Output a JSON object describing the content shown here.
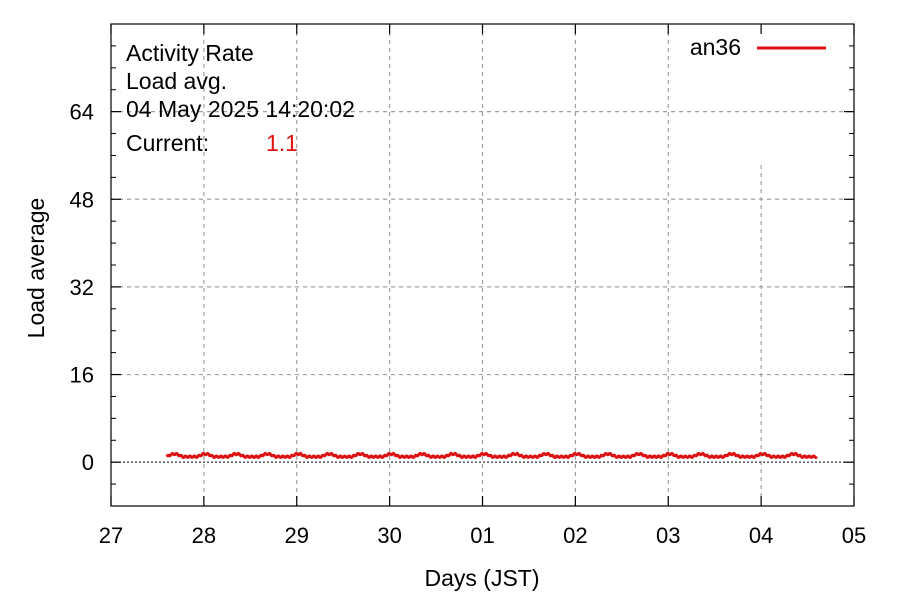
{
  "chart_data": {
    "type": "line",
    "title_lines": [
      "Activity Rate",
      "Load avg.",
      "04 May 2025 14:20:02"
    ],
    "current_label": "Current:",
    "current_value": "1.1",
    "xlabel": "Days (JST)",
    "ylabel": "Load average",
    "x_ticks": [
      {
        "value": 0,
        "label": "27"
      },
      {
        "value": 1,
        "label": "28"
      },
      {
        "value": 2,
        "label": "29"
      },
      {
        "value": 3,
        "label": "30"
      },
      {
        "value": 4,
        "label": "01"
      },
      {
        "value": 5,
        "label": "02"
      },
      {
        "value": 6,
        "label": "03"
      },
      {
        "value": 7,
        "label": "04"
      },
      {
        "value": 8,
        "label": "05"
      }
    ],
    "xlim": [
      0,
      8
    ],
    "ylim": [
      -8,
      80
    ],
    "y_ticks": [
      0,
      16,
      32,
      48,
      64
    ],
    "grid": true,
    "legend_position": "top-right",
    "series": [
      {
        "name": "an36",
        "color": "#dd1111",
        "x_start": 0.6,
        "x_end": 7.6,
        "y_base": 1.0,
        "y_amplitude": 0.5
      }
    ]
  }
}
